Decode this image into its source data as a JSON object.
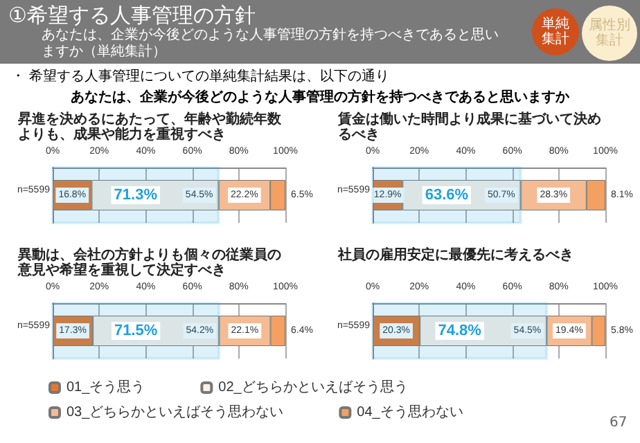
{
  "chart_data": [
    {
      "type": "other",
      "title": "①希望する人事管理の方針",
      "subtitle": "あなたは、企業が今後どのような人事管理の方針を持つべきであると思いますか（単純集計）",
      "annotations": [
        "・ 希望する人事管理についての単純集計結果は、以下の通り",
        "あなたは、企業が今後どのような人事管理の方針を持つべきであると思いますか",
        "単純集計",
        "属性別集計",
        "67"
      ]
    },
    {
      "type": "bar",
      "orientation": "horizontal",
      "stacked": true,
      "title": "昇進を決めるにあたって、年齢や勤続年数よりも、成果や能力を重視すべき",
      "categories": [
        "n=5599"
      ],
      "xlim": [
        0,
        100
      ],
      "xticks": [
        {
          "value": 0,
          "label": "0%"
        },
        {
          "value": 20,
          "label": "20%"
        },
        {
          "value": 40,
          "label": "40%"
        },
        {
          "value": 60,
          "label": "60%"
        },
        {
          "value": 80,
          "label": "80%"
        },
        {
          "value": 100,
          "label": "100%"
        }
      ],
      "grid": "x",
      "legend": false,
      "series": [
        {
          "color": "#e8772e",
          "values": [
            16.8
          ],
          "value_labels": [
            "16.8%"
          ]
        },
        {
          "color": "#fdf1e8",
          "values": [
            54.5
          ],
          "value_labels": [
            "54.5%"
          ]
        },
        {
          "color": "#f5bb92",
          "values": [
            22.2
          ],
          "value_labels": [
            "22.2%"
          ]
        },
        {
          "color": "#f3a062",
          "values": [
            6.5
          ],
          "value_labels": [
            "6.5%"
          ]
        }
      ],
      "bands": [
        {
          "axis": "x",
          "from": 0,
          "to": 71.3,
          "label": "71.3%",
          "color": "#1ea0e0"
        }
      ]
    },
    {
      "type": "bar",
      "orientation": "horizontal",
      "stacked": true,
      "title": "賃金は働いた時間より成果に基づいて決めるべき",
      "categories": [
        "n=5599"
      ],
      "xlim": [
        0,
        100
      ],
      "xticks": [
        {
          "value": 0,
          "label": "0%"
        },
        {
          "value": 20,
          "label": "20%"
        },
        {
          "value": 40,
          "label": "40%"
        },
        {
          "value": 60,
          "label": "60%"
        },
        {
          "value": 80,
          "label": "80%"
        },
        {
          "value": 100,
          "label": "100%"
        }
      ],
      "grid": "x",
      "legend": false,
      "series": [
        {
          "color": "#e8772e",
          "values": [
            12.9
          ],
          "value_labels": [
            "12.9%"
          ]
        },
        {
          "color": "#fdf1e8",
          "values": [
            50.7
          ],
          "value_labels": [
            "50.7%"
          ]
        },
        {
          "color": "#f5bb92",
          "values": [
            28.3
          ],
          "value_labels": [
            "28.3%"
          ]
        },
        {
          "color": "#f3a062",
          "values": [
            8.1
          ],
          "value_labels": [
            "8.1%"
          ]
        }
      ],
      "bands": [
        {
          "axis": "x",
          "from": 0,
          "to": 63.6,
          "label": "63.6%",
          "color": "#1ea0e0"
        }
      ]
    },
    {
      "type": "bar",
      "orientation": "horizontal",
      "stacked": true,
      "title": "異動は、会社の方針よりも個々の従業員の意見や希望を重視して決定すべき",
      "categories": [
        "n=5599"
      ],
      "xlim": [
        0,
        100
      ],
      "xticks": [
        {
          "value": 0,
          "label": "0%"
        },
        {
          "value": 20,
          "label": "20%"
        },
        {
          "value": 40,
          "label": "40%"
        },
        {
          "value": 60,
          "label": "60%"
        },
        {
          "value": 80,
          "label": "80%"
        },
        {
          "value": 100,
          "label": "100%"
        }
      ],
      "grid": "x",
      "legend": false,
      "series": [
        {
          "color": "#e8772e",
          "values": [
            17.3
          ],
          "value_labels": [
            "17.3%"
          ]
        },
        {
          "color": "#fdf1e8",
          "values": [
            54.2
          ],
          "value_labels": [
            "54.2%"
          ]
        },
        {
          "color": "#f5bb92",
          "values": [
            22.1
          ],
          "value_labels": [
            "22.1%"
          ]
        },
        {
          "color": "#f3a062",
          "values": [
            6.4
          ],
          "value_labels": [
            "6.4%"
          ]
        }
      ],
      "bands": [
        {
          "axis": "x",
          "from": 0,
          "to": 71.5,
          "label": "71.5%",
          "color": "#1ea0e0"
        }
      ]
    },
    {
      "type": "bar",
      "orientation": "horizontal",
      "stacked": true,
      "title": "社員の雇用安定に最優先に考えるべき",
      "categories": [
        "n=5599"
      ],
      "xlim": [
        0,
        100
      ],
      "xticks": [
        {
          "value": 0,
          "label": "0%"
        },
        {
          "value": 20,
          "label": "20%"
        },
        {
          "value": 40,
          "label": "40%"
        },
        {
          "value": 60,
          "label": "60%"
        },
        {
          "value": 80,
          "label": "80%"
        },
        {
          "value": 100,
          "label": "100%"
        }
      ],
      "grid": "x",
      "legend": "bottom",
      "series": [
        {
          "name": "01_そう思う",
          "color": "#e8772e",
          "values": [
            20.3
          ],
          "value_labels": [
            "20.3%"
          ]
        },
        {
          "name": "02_どちらかといえばそう思う",
          "color": "#fdf1e8",
          "values": [
            54.5
          ],
          "value_labels": [
            "54.5%"
          ]
        },
        {
          "name": "03_どちらかといえばそう思わない",
          "color": "#f5bb92",
          "values": [
            19.4
          ],
          "value_labels": [
            "19.4%"
          ]
        },
        {
          "name": "04_そう思わない",
          "color": "#f3a062",
          "values": [
            5.8
          ],
          "value_labels": [
            "5.8%"
          ]
        }
      ],
      "bands": [
        {
          "axis": "x",
          "from": 0,
          "to": 74.8,
          "label": "74.8%",
          "color": "#1ea0e0"
        }
      ]
    }
  ]
}
